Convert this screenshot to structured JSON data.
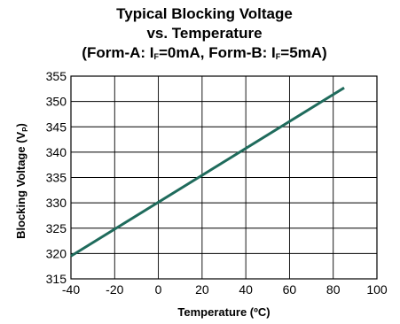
{
  "chart_data": {
    "type": "line",
    "title_line1": "Typical Blocking Voltage",
    "title_line2": "vs. Temperature",
    "title_line3_parts": [
      "(Form-A: I",
      "F",
      "=0mA, Form-B: I",
      "F",
      "=5mA)"
    ],
    "xlabel": "Temperature (ºC)",
    "ylabel_main": "Blocking Voltage (V",
    "ylabel_sub": "P",
    "ylabel_end": ")",
    "xlim": [
      -40,
      100
    ],
    "ylim": [
      315,
      355
    ],
    "xticks": [
      -40,
      -20,
      0,
      20,
      40,
      60,
      80,
      100
    ],
    "yticks": [
      315,
      320,
      325,
      330,
      335,
      340,
      345,
      350,
      355
    ],
    "grid": true,
    "series": [
      {
        "color": "#1f6b5c",
        "x": [
          -40,
          85
        ],
        "y": [
          319.5,
          352.7
        ]
      }
    ]
  }
}
